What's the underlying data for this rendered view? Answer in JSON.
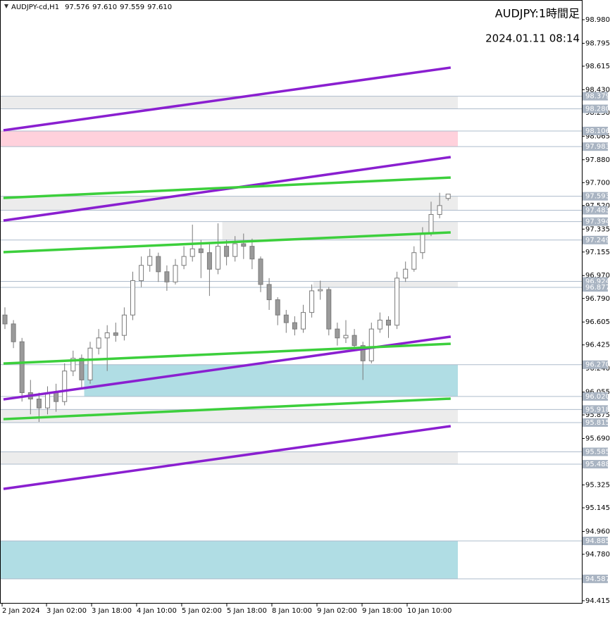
{
  "chart_data": {
    "type": "candlestick",
    "symbol": "AUDJPY-cd,H1",
    "quote": [
      "97.576",
      "97.610",
      "97.559",
      "97.610"
    ],
    "title": "AUDJPY:1時間足",
    "subtitle": "2024.01.11 08:14",
    "ylim": [
      94.398,
      99.135
    ],
    "yticks": [
      {
        "value": 98.98,
        "label": "98.980"
      },
      98.795,
      98.615,
      {
        "value": 98.43,
        "label": "98.430"
      },
      {
        "value": 98.25,
        "label": "98.250"
      },
      98.065,
      {
        "value": 97.88,
        "label": "97.880"
      },
      {
        "value": 97.7,
        "label": "97.700"
      },
      {
        "value": 97.52,
        "label": "97.520"
      },
      97.335,
      97.155,
      {
        "value": 96.97,
        "label": "96.970"
      },
      {
        "value": 96.79,
        "label": "96.790"
      },
      96.605,
      96.425,
      {
        "value": 96.24,
        "label": "96.240"
      },
      96.055,
      95.875,
      {
        "value": 95.69,
        "label": "95.690"
      },
      95.325,
      95.145,
      {
        "value": 94.96,
        "label": "94.960"
      },
      {
        "value": 94.78,
        "label": "94.780"
      },
      94.415
    ],
    "xticks": [
      {
        "value": -0.33,
        "label": "2 Jan 2024"
      },
      {
        "value": 4.88,
        "label": "3 Jan 02:00"
      },
      {
        "value": 10.17,
        "label": "3 Jan 18:00"
      },
      {
        "value": 15.45,
        "label": "4 Jan 10:00"
      },
      {
        "value": 20.74,
        "label": "5 Jan 02:00"
      },
      {
        "value": 26.03,
        "label": "5 Jan 18:00"
      },
      {
        "value": 31.32,
        "label": "8 Jan 10:00"
      },
      {
        "value": 36.61,
        "label": "9 Jan 02:00"
      },
      {
        "value": 41.9,
        "label": "9 Jan 18:00"
      },
      {
        "value": 47.19,
        "label": "10 Jan 10:00"
      }
    ],
    "open": [
      96.66,
      96.59,
      96.45,
      96.05,
      96.0,
      95.93,
      96.05,
      95.98,
      96.22,
      96.32,
      96.15,
      96.4,
      96.48,
      96.52,
      96.5,
      96.66,
      96.93,
      97.05,
      97.12,
      97.0,
      96.92,
      97.05,
      97.12,
      97.18,
      97.15,
      97.02,
      97.2,
      97.12,
      97.22,
      97.2,
      97.1,
      96.9,
      96.78,
      96.66,
      96.6,
      96.55,
      96.68,
      96.85,
      96.86,
      96.55,
      96.48,
      96.5,
      96.42,
      96.3,
      96.55,
      96.62,
      96.58,
      96.95,
      97.02,
      97.15,
      97.3,
      97.45,
      97.576
    ],
    "high": [
      96.72,
      96.62,
      96.48,
      96.15,
      96.05,
      96.1,
      96.12,
      96.28,
      96.38,
      96.35,
      96.45,
      96.55,
      96.58,
      96.6,
      96.72,
      97.0,
      97.12,
      97.18,
      97.15,
      97.05,
      97.1,
      97.2,
      97.37,
      97.25,
      97.22,
      97.38,
      97.25,
      97.28,
      97.3,
      97.26,
      97.12,
      96.95,
      96.8,
      96.7,
      96.65,
      96.74,
      96.9,
      96.93,
      96.88,
      96.6,
      96.62,
      96.55,
      96.45,
      96.6,
      96.68,
      96.65,
      97.0,
      97.08,
      97.2,
      97.35,
      97.55,
      97.62,
      97.61
    ],
    "low": [
      96.55,
      96.4,
      95.98,
      95.88,
      95.82,
      95.88,
      95.9,
      95.95,
      96.18,
      96.08,
      96.12,
      96.35,
      96.22,
      96.45,
      96.46,
      96.62,
      96.88,
      97.0,
      96.92,
      96.85,
      96.9,
      97.02,
      97.08,
      96.95,
      96.81,
      96.98,
      97.05,
      97.08,
      97.1,
      97.02,
      96.84,
      96.7,
      96.58,
      96.52,
      96.5,
      96.52,
      96.64,
      96.78,
      96.5,
      96.42,
      96.44,
      96.38,
      96.15,
      96.28,
      96.52,
      96.48,
      96.55,
      96.92,
      97.0,
      97.1,
      97.28,
      97.42,
      97.559
    ],
    "close": [
      96.59,
      96.45,
      96.05,
      96.0,
      95.93,
      96.05,
      95.98,
      96.22,
      96.32,
      96.15,
      96.4,
      96.48,
      96.52,
      96.5,
      96.66,
      96.93,
      97.05,
      97.12,
      97.0,
      96.92,
      97.05,
      97.12,
      97.18,
      97.15,
      97.02,
      97.2,
      97.12,
      97.22,
      97.2,
      97.1,
      96.9,
      96.78,
      96.66,
      96.6,
      96.55,
      96.68,
      96.85,
      96.86,
      96.55,
      96.48,
      96.5,
      96.42,
      96.3,
      96.55,
      96.62,
      96.58,
      96.95,
      97.02,
      97.15,
      97.3,
      97.45,
      97.52,
      97.61
    ],
    "zones": [
      {
        "top": 98.379,
        "bottom": {
          "value": 98.28,
          "label": "98.280"
        },
        "color": "#ececec"
      },
      {
        "top": 98.106,
        "bottom": 97.983,
        "color": "#ffd1dc"
      },
      {
        "top": 97.593,
        "bottom": 97.483,
        "color": "#ececec"
      },
      {
        "top": 97.394,
        "bottom": 97.249,
        "color": "#ececec",
        "start": 25.5
      },
      {
        "top": 96.924,
        "bottom": 96.877,
        "color": "#ececec",
        "start": 36.2
      },
      {
        "top": {
          "value": 96.27,
          "label": "96.270"
        },
        "bottom": {
          "value": 96.02,
          "label": "96.020"
        },
        "color": "#b0dde4",
        "start": 9.3
      },
      {
        "top": 95.918,
        "bottom": 95.815,
        "color": "#ececec"
      },
      {
        "top": 95.585,
        "bottom": 95.488,
        "color": "#ececec"
      },
      {
        "top": 94.885,
        "bottom": 94.587,
        "color": "#b0dde4"
      }
    ],
    "trend_lines": [
      {
        "from": [
          -0.17,
          98.111
        ],
        "to": [
          52.3,
          98.604
        ],
        "color": "#8a1fd0"
      },
      {
        "from": [
          -0.17,
          97.402
        ],
        "to": [
          52.3,
          97.901
        ],
        "color": "#8a1fd0"
      },
      {
        "from": [
          -0.17,
          95.997
        ],
        "to": [
          52.3,
          96.49
        ],
        "color": "#8a1fd0"
      },
      {
        "from": [
          -0.17,
          95.294
        ],
        "to": [
          52.3,
          95.787
        ],
        "color": "#8a1fd0"
      },
      {
        "from": [
          -0.17,
          97.58
        ],
        "to": [
          52.3,
          97.74
        ],
        "color": "#3ccf3c"
      },
      {
        "from": [
          -0.17,
          97.154
        ],
        "to": [
          52.3,
          97.309
        ],
        "color": "#3ccf3c"
      },
      {
        "from": [
          -0.17,
          96.279
        ],
        "to": [
          52.3,
          96.434
        ],
        "color": "#3ccf3c"
      },
      {
        "from": [
          -0.17,
          95.842
        ],
        "to": [
          52.3,
          96.003
        ],
        "color": "#3ccf3c"
      }
    ]
  }
}
